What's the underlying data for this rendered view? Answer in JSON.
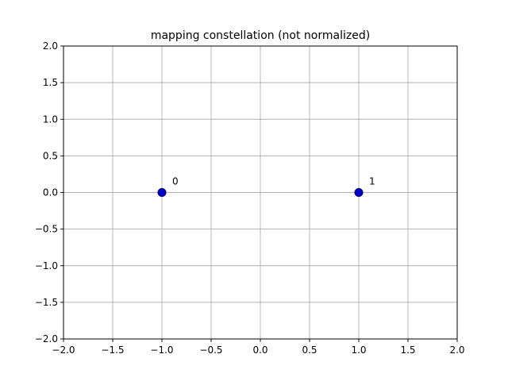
{
  "chart_data": {
    "type": "scatter",
    "title": "mapping constellation (not normalized)",
    "xlabel": "",
    "ylabel": "",
    "xlim": [
      -2.0,
      2.0
    ],
    "ylim": [
      -2.0,
      2.0
    ],
    "grid": true,
    "xticks": [
      -2.0,
      -1.5,
      -1.0,
      -0.5,
      0.0,
      0.5,
      1.0,
      1.5,
      2.0
    ],
    "yticks": [
      -2.0,
      -1.5,
      -1.0,
      -0.5,
      0.0,
      0.5,
      1.0,
      1.5,
      2.0
    ],
    "xtick_labels": [
      "−2.0",
      "−1.5",
      "−1.0",
      "−0.5",
      "0.0",
      "0.5",
      "1.0",
      "1.5",
      "2.0"
    ],
    "ytick_labels": [
      "−2.0",
      "−1.5",
      "−1.0",
      "−0.5",
      "0.0",
      "0.5",
      "1.0",
      "1.5",
      "2.0"
    ],
    "points": [
      {
        "x": -1.0,
        "y": 0.0,
        "label": "0"
      },
      {
        "x": 1.0,
        "y": 0.0,
        "label": "1"
      }
    ],
    "marker_color": "#0000cc",
    "marker_edge_color": "#000080"
  }
}
